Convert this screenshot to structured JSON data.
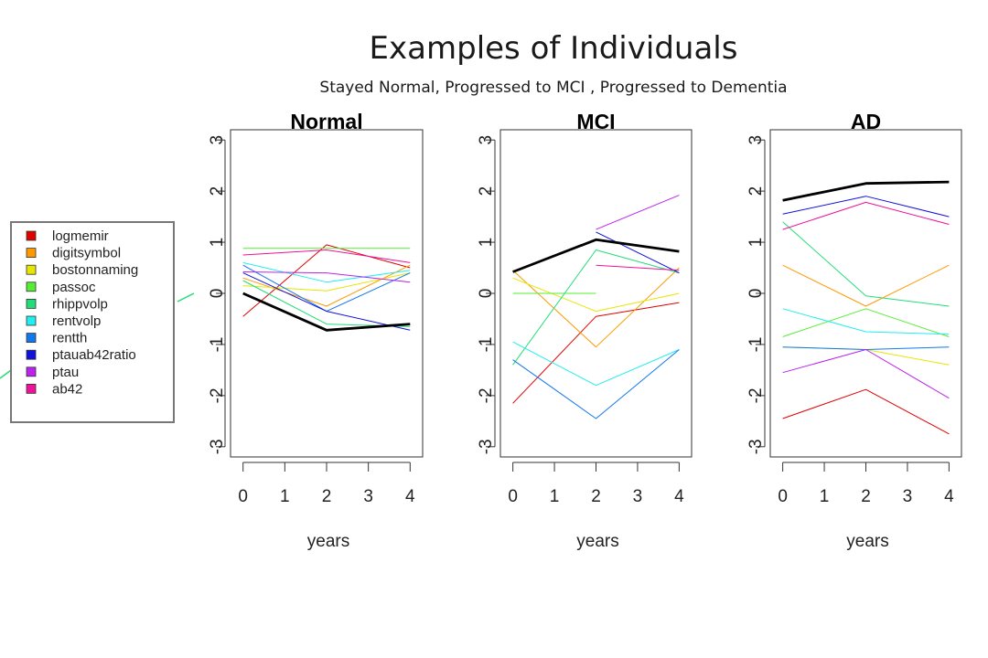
{
  "title": "Examples of Individuals",
  "subtitle": "Stayed Normal, Progressed to MCI , Progressed to Dementia",
  "legend": [
    {
      "label": "logmemir",
      "color": "#e00000"
    },
    {
      "label": "digitsymbol",
      "color": "#ff9900"
    },
    {
      "label": "bostonnaming",
      "color": "#e6e600"
    },
    {
      "label": "passoc",
      "color": "#55ee33"
    },
    {
      "label": "rhippvolp",
      "color": "#22dd77"
    },
    {
      "label": "rentvolp",
      "color": "#22eeee"
    },
    {
      "label": "rentth",
      "color": "#1177ee"
    },
    {
      "label": "ptauab42ratio",
      "color": "#1111dd"
    },
    {
      "label": "ptau",
      "color": "#bb22ee"
    },
    {
      "label": "ab42",
      "color": "#ee1199"
    }
  ],
  "mean_color": "#000000",
  "chart_data": [
    {
      "type": "line",
      "title": "Normal",
      "xlabel": "years",
      "ylabel": "",
      "xticks": [
        0,
        1,
        2,
        3,
        4
      ],
      "yticks": [
        -3,
        -2,
        -1,
        0,
        1,
        2,
        3
      ],
      "xlim": [
        -0.3,
        4.3
      ],
      "ylim": [
        -3.2,
        3.2
      ],
      "series": [
        {
          "color": "#e00000",
          "points": [
            [
              0,
              -0.45
            ],
            [
              2,
              0.95
            ],
            [
              4,
              0.5
            ]
          ]
        },
        {
          "color": "#ff9900",
          "points": [
            [
              0,
              0.3
            ],
            [
              2,
              -0.25
            ],
            [
              4,
              0.55
            ]
          ]
        },
        {
          "color": "#e6e600",
          "points": [
            [
              0,
              0.15
            ],
            [
              2,
              0.05
            ],
            [
              4,
              0.4
            ]
          ]
        },
        {
          "color": "#55ee33",
          "points": [
            [
              0,
              0.88
            ],
            [
              2,
              0.88
            ],
            [
              4,
              0.88
            ]
          ]
        },
        {
          "color": "#22dd77",
          "points": [
            [
              0,
              0.25
            ],
            [
              2,
              -0.6
            ],
            [
              4,
              -0.65
            ]
          ]
        },
        {
          "color": "#22eeee",
          "points": [
            [
              0,
              0.6
            ],
            [
              2,
              0.22
            ],
            [
              4,
              0.45
            ]
          ]
        },
        {
          "color": "#1177ee",
          "points": [
            [
              0,
              0.55
            ],
            [
              2,
              -0.35
            ],
            [
              4,
              0.4
            ]
          ]
        },
        {
          "color": "#1111dd",
          "points": [
            [
              0,
              0.4
            ],
            [
              2,
              -0.35
            ],
            [
              4,
              -0.72
            ]
          ]
        },
        {
          "color": "#bb22ee",
          "points": [
            [
              0,
              0.42
            ],
            [
              2,
              0.4
            ],
            [
              4,
              0.22
            ]
          ]
        },
        {
          "color": "#ee1199",
          "points": [
            [
              0,
              0.75
            ],
            [
              2,
              0.85
            ],
            [
              4,
              0.6
            ]
          ]
        },
        {
          "color": "#000000",
          "bold": true,
          "points": [
            [
              0,
              0.0
            ],
            [
              2,
              -0.72
            ],
            [
              4,
              -0.6
            ]
          ]
        }
      ]
    },
    {
      "type": "line",
      "title": "MCI",
      "xlabel": "years",
      "ylabel": "",
      "xticks": [
        0,
        1,
        2,
        3,
        4
      ],
      "yticks": [
        -3,
        -2,
        -1,
        0,
        1,
        2,
        3
      ],
      "xlim": [
        -0.3,
        4.3
      ],
      "ylim": [
        -3.2,
        3.2
      ],
      "series": [
        {
          "color": "#e00000",
          "points": [
            [
              0,
              -2.15
            ],
            [
              2,
              -0.45
            ],
            [
              4,
              -0.18
            ]
          ]
        },
        {
          "color": "#ff9900",
          "points": [
            [
              0,
              0.45
            ],
            [
              2,
              -1.05
            ],
            [
              4,
              0.5
            ]
          ]
        },
        {
          "color": "#e6e600",
          "points": [
            [
              0,
              0.3
            ],
            [
              2,
              -0.35
            ],
            [
              4,
              0.0
            ]
          ]
        },
        {
          "color": "#55ee33",
          "points": [
            [
              0,
              0.0
            ],
            [
              2,
              0.0
            ]
          ]
        },
        {
          "color": "#22dd77",
          "points": [
            [
              0,
              -1.4
            ],
            [
              2,
              0.85
            ],
            [
              4,
              0.4
            ]
          ]
        },
        {
          "color": "#22eeee",
          "points": [
            [
              0,
              -0.95
            ],
            [
              2,
              -1.8
            ],
            [
              4,
              -1.1
            ]
          ]
        },
        {
          "color": "#1177ee",
          "points": [
            [
              0,
              -1.3
            ],
            [
              2,
              -2.45
            ],
            [
              4,
              -1.1
            ]
          ]
        },
        {
          "color": "#1111dd",
          "points": [
            [
              2,
              1.2
            ],
            [
              4,
              0.4
            ]
          ]
        },
        {
          "color": "#bb22ee",
          "points": [
            [
              2,
              1.25
            ],
            [
              4,
              1.92
            ]
          ]
        },
        {
          "color": "#ee1199",
          "points": [
            [
              2,
              0.55
            ],
            [
              4,
              0.45
            ]
          ]
        },
        {
          "color": "#000000",
          "bold": true,
          "points": [
            [
              0,
              0.42
            ],
            [
              2,
              1.05
            ],
            [
              4,
              0.82
            ]
          ]
        }
      ]
    },
    {
      "type": "line",
      "title": "AD",
      "xlabel": "years",
      "ylabel": "",
      "xticks": [
        0,
        1,
        2,
        3,
        4
      ],
      "yticks": [
        -3,
        -2,
        -1,
        0,
        1,
        2,
        3
      ],
      "xlim": [
        -0.3,
        4.3
      ],
      "ylim": [
        -3.2,
        3.2
      ],
      "series": [
        {
          "color": "#e00000",
          "points": [
            [
              0,
              -2.45
            ],
            [
              2,
              -1.88
            ],
            [
              4,
              -2.75
            ]
          ]
        },
        {
          "color": "#ff9900",
          "points": [
            [
              0,
              0.55
            ],
            [
              2,
              -0.25
            ],
            [
              4,
              0.55
            ]
          ]
        },
        {
          "color": "#e6e600",
          "points": [
            [
              0,
              -1.05
            ],
            [
              2,
              -1.1
            ],
            [
              4,
              -1.4
            ]
          ]
        },
        {
          "color": "#55ee33",
          "points": [
            [
              0,
              -0.85
            ],
            [
              2,
              -0.3
            ],
            [
              4,
              -0.85
            ]
          ]
        },
        {
          "color": "#22dd77",
          "points": [
            [
              0,
              1.4
            ],
            [
              2,
              -0.05
            ],
            [
              4,
              -0.25
            ]
          ]
        },
        {
          "color": "#22eeee",
          "points": [
            [
              0,
              -0.3
            ],
            [
              2,
              -0.75
            ],
            [
              4,
              -0.8
            ]
          ]
        },
        {
          "color": "#1177ee",
          "points": [
            [
              0,
              -1.05
            ],
            [
              2,
              -1.1
            ],
            [
              4,
              -1.05
            ]
          ]
        },
        {
          "color": "#1111dd",
          "points": [
            [
              0,
              1.55
            ],
            [
              2,
              1.9
            ],
            [
              4,
              1.5
            ]
          ]
        },
        {
          "color": "#bb22ee",
          "points": [
            [
              0,
              -1.55
            ],
            [
              2,
              -1.1
            ],
            [
              4,
              -2.05
            ]
          ]
        },
        {
          "color": "#ee1199",
          "points": [
            [
              0,
              1.25
            ],
            [
              2,
              1.78
            ],
            [
              4,
              1.35
            ]
          ]
        },
        {
          "color": "#000000",
          "bold": true,
          "points": [
            [
              0,
              1.82
            ],
            [
              2,
              2.15
            ],
            [
              4,
              2.18
            ]
          ]
        }
      ]
    }
  ]
}
